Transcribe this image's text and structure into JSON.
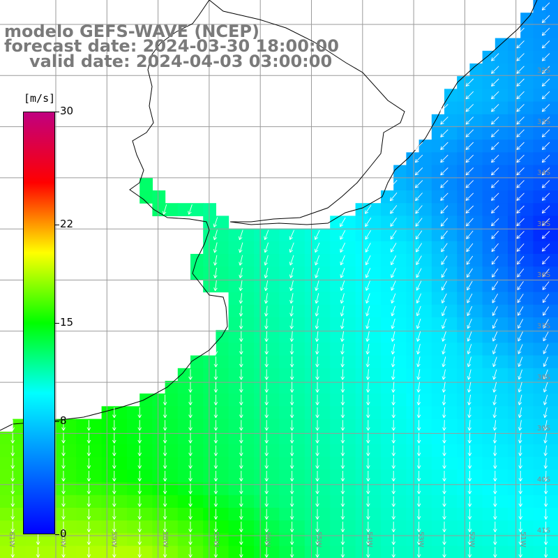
{
  "header": {
    "line1": "modelo GEFS-WAVE (NCEP)",
    "line2": "forecast date: 2024-03-30 18:00:00",
    "line3": "valid date: 2024-04-03 03:00:00"
  },
  "colorbar": {
    "unit": "[m/s]",
    "min": 0,
    "max": 30,
    "ticks": [
      {
        "label": "30",
        "value": 30
      },
      {
        "label": "22",
        "value": 22
      },
      {
        "label": "15",
        "value": 15
      },
      {
        "label": "8",
        "value": 8
      },
      {
        "label": "0",
        "value": 0
      }
    ],
    "stops": [
      "#0000ff",
      "#0040ff",
      "#0080ff",
      "#00c0ff",
      "#00ffff",
      "#00ff80",
      "#00ff00",
      "#80ff00",
      "#ffff00",
      "#ff8000",
      "#ff0000",
      "#e00040",
      "#c00080"
    ]
  },
  "map": {
    "lat_labels": [
      "32S",
      "33S",
      "34S",
      "35S",
      "36S",
      "37S",
      "38S",
      "39S",
      "40S",
      "41S"
    ],
    "lon_labels": [
      "61W",
      "60W",
      "59W",
      "58W",
      "57W",
      "56W",
      "55W",
      "54W",
      "53W",
      "52W",
      "51W"
    ],
    "land_color": "#ffffff",
    "grid_color": "#9a9a9a",
    "coast_color": "#000000",
    "arrow_color": "#ffffff"
  }
}
